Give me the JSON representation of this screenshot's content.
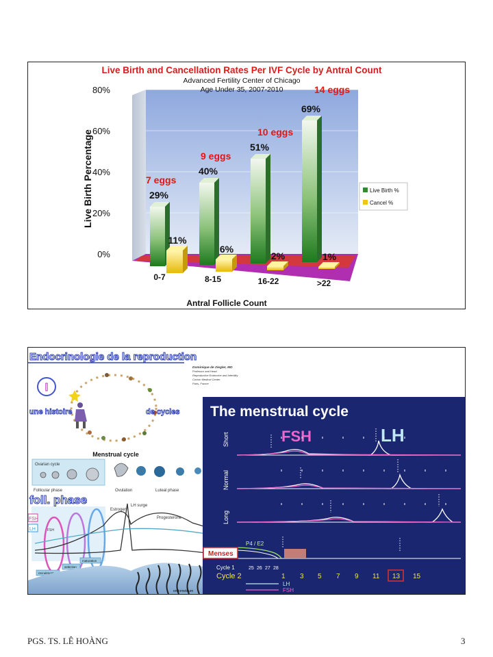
{
  "colors": {
    "live_top": "#2e8b2e",
    "live_light": "#e6f2e0",
    "cancel": "#f0c419",
    "eggs_label": "#e8140f",
    "title": "#d81b1b",
    "panel_bg": "#1b2670",
    "pink": "#ee66cc",
    "cyan": "#bfe8f2"
  },
  "slide1": {
    "chart_data": {
      "type": "bar",
      "title": "Live Birth and Cancellation Rates Per IVF Cycle by Antral Count",
      "subtitle": [
        "Advanced Fertility Center of Chicago",
        "Age Under 35, 2007-2010"
      ],
      "xlabel": "Antral Follicle Count",
      "ylabel": "Live Birth Percentage",
      "categories": [
        "0-7",
        "8-15",
        "16-22",
        ">22"
      ],
      "series": [
        {
          "name": "Live Birth %",
          "values": [
            29,
            40,
            51,
            69
          ],
          "labels": [
            "29%",
            "40%",
            "51%",
            "69%"
          ]
        },
        {
          "name": "Cancel %",
          "values": [
            11,
            6,
            2,
            1
          ],
          "labels": [
            "11%",
            "6%",
            "2%",
            "1%"
          ]
        }
      ],
      "yticks": [
        "0%",
        "20%",
        "40%",
        "60%",
        "80%"
      ],
      "ylim": [
        0,
        80
      ],
      "annotations": [
        "7 eggs",
        "9 eggs",
        "10 eggs",
        "14 eggs"
      ],
      "legend": "right",
      "grid": true
    }
  },
  "slide2": {
    "left": {
      "title": "Endocrinologie de la reproduction",
      "roman": "I",
      "phrase1": "une histoire",
      "phrase2": "de cycles",
      "credit": [
        "Dominique de Ziegler, MD",
        "Professor and Head",
        "Reproductive Endocrine and Infertility",
        "Cochin Medical Center",
        "Paris, France"
      ],
      "cycle_title": "Menstrual cycle",
      "ovarian_label": "Ovarian cycle",
      "phases": [
        "Follicular phase",
        "Ovulation",
        "Luteal phase"
      ],
      "foll_phase": "foll. phase",
      "hormones": [
        "Estrogen",
        "LH surge",
        "Progesterone"
      ],
      "side_tags": [
        "FSH",
        "LH"
      ],
      "fsh_small": "FSH",
      "stages": [
        "maturation",
        "selection",
        "recruitment"
      ],
      "endometrium": "endometrium"
    },
    "right": {
      "title": "The menstrual cycle",
      "fsh": "FSH",
      "lh": "LH",
      "rows": [
        "Short",
        "Normal",
        "Long"
      ],
      "p4e2": "P4 / E2",
      "menses": "Menses",
      "cycle1": "Cycle 1",
      "cycle1_days": [
        "25",
        "26",
        "27",
        "28"
      ],
      "cycle2": "Cycle 2",
      "cycle2_days": [
        "1",
        "3",
        "5",
        "7",
        "9",
        "11",
        "13",
        "15"
      ],
      "legend": [
        "LH",
        "FSH"
      ]
    }
  },
  "footer": {
    "author": "PGS. TS. LÊ HOÀNG",
    "page": "3"
  }
}
